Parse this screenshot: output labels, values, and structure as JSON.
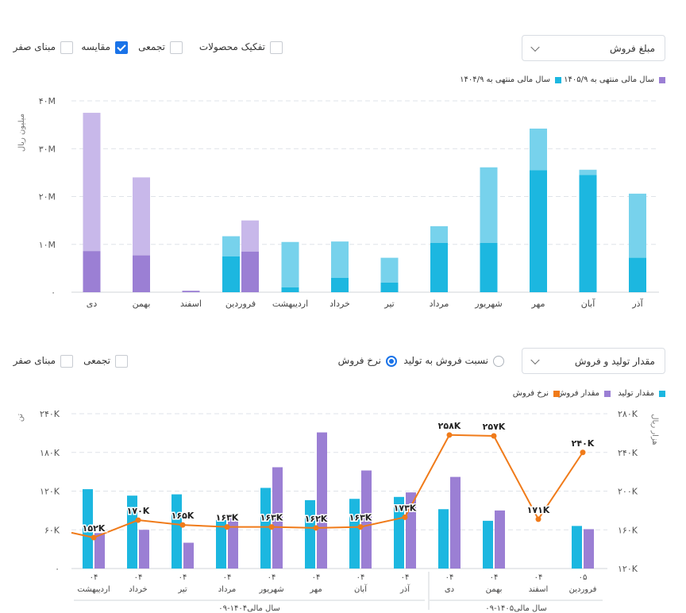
{
  "top": {
    "dropdown_label": "مبلغ فروش",
    "options": [
      {
        "label": "تفکیک محصولات",
        "checked": false
      },
      {
        "label": "تجمعی",
        "checked": false
      },
      {
        "label": "مقایسه",
        "checked": true
      },
      {
        "label": "مبنای صفر",
        "checked": false
      }
    ],
    "legend": [
      {
        "label": "سال مالی منتهی به ۱۴۰۵/۹",
        "color": "#9b7fd4"
      },
      {
        "label": "سال مالی منتهی به ۱۴۰۴/۹",
        "color": "#1cb7e0"
      }
    ]
  },
  "bottom": {
    "dropdown_label": "مقدار تولید و فروش",
    "radios": [
      {
        "label": "نسبت فروش به تولید",
        "selected": false
      },
      {
        "label": "نرخ فروش",
        "selected": true
      }
    ],
    "options": [
      {
        "label": "تجمعی",
        "checked": false
      },
      {
        "label": "مبنای صفر",
        "checked": false
      }
    ],
    "legend": [
      {
        "label": "مقدار تولید",
        "color": "#1cb7e0"
      },
      {
        "label": "مقدار فروش",
        "color": "#9b7fd4"
      },
      {
        "label": "نرخ فروش",
        "color": "#f07b1a"
      }
    ]
  },
  "chart_data": [
    {
      "type": "bar",
      "stacked": true,
      "ylabel": "میلیون ریال",
      "yticks": [
        "۰",
        "۱۰M",
        "۲۰M",
        "۳۰M",
        "۴۰M"
      ],
      "ylim": [
        0,
        40
      ],
      "categories": [
        "آذر",
        "آبان",
        "مهر",
        "شهریور",
        "مرداد",
        "تیر",
        "خرداد",
        "اردیبهشت",
        "فروردین",
        "اسفند",
        "بهمن",
        "دی"
      ],
      "series": [
        {
          "name": "سال مالی منتهی به ۱۴۰۴/۹",
          "colors": [
            "#1cb7e0",
            "#77d2ec"
          ],
          "base": [
            7.2,
            24.5,
            25.5,
            10.3,
            10.3,
            2.0,
            3.0,
            1.0,
            7.5,
            null,
            null,
            null
          ],
          "total": [
            20.6,
            25.6,
            34.2,
            26.1,
            13.8,
            7.2,
            10.6,
            10.5,
            11.7,
            null,
            null,
            null
          ]
        },
        {
          "name": "سال مالی منتهی به ۱۴۰۵/۹",
          "colors": [
            "#9b7fd4",
            "#c8b8ea"
          ],
          "base": [
            null,
            null,
            null,
            null,
            null,
            null,
            null,
            null,
            8.5,
            0.3,
            7.7,
            8.6
          ],
          "total": [
            null,
            null,
            null,
            null,
            null,
            null,
            null,
            null,
            15.0,
            0.3,
            24.0,
            37.5
          ]
        }
      ]
    },
    {
      "type": "bar+line",
      "y_left_label": "تن",
      "y_right_label": "هزار ریال",
      "y_left_ticks": [
        "۰",
        "۶۰K",
        "۱۲۰K",
        "۱۸۰K",
        "۲۴۰K"
      ],
      "y_left_lim": [
        0,
        240000
      ],
      "y_right_ticks": [
        "۱۲۰K",
        "۱۶۰K",
        "۲۰۰K",
        "۲۴۰K",
        "۲۸۰K"
      ],
      "y_right_lim": [
        120000,
        280000
      ],
      "categories": [
        {
          "month": "اردیبهشت",
          "year": "۰۴"
        },
        {
          "month": "خرداد",
          "year": "۰۴"
        },
        {
          "month": "تیر",
          "year": "۰۴"
        },
        {
          "month": "مرداد",
          "year": "۰۴"
        },
        {
          "month": "شهریور",
          "year": "۰۴"
        },
        {
          "month": "مهر",
          "year": "۰۴"
        },
        {
          "month": "آبان",
          "year": "۰۴"
        },
        {
          "month": "آذر",
          "year": "۰۴"
        },
        {
          "month": "دی",
          "year": "۰۴"
        },
        {
          "month": "بهمن",
          "year": "۰۴"
        },
        {
          "month": "اسفند",
          "year": "۰۴"
        },
        {
          "month": "فروردین",
          "year": "۰۵"
        }
      ],
      "groups": [
        {
          "label": "سال مالی۱۴۰۴-۰۹",
          "from": 0,
          "to": 7
        },
        {
          "label": "سال مالی۱۴۰۵-۰۹",
          "from": 8,
          "to": 11
        }
      ],
      "series": [
        {
          "name": "مقدار تولید",
          "color": "#1cb7e0",
          "values": [
            123000,
            113000,
            115000,
            75000,
            125000,
            106000,
            108000,
            111000,
            92000,
            74000,
            null,
            66000
          ]
        },
        {
          "name": "مقدار فروش",
          "color": "#9b7fd4",
          "values": [
            55000,
            60000,
            40000,
            78000,
            157000,
            211000,
            152000,
            118000,
            142000,
            90000,
            null,
            61000
          ]
        },
        {
          "name": "نرخ فروش",
          "color": "#f07b1a",
          "values": [
            152000,
            170000,
            165000,
            163000,
            163000,
            162000,
            163000,
            173000,
            258000,
            257000,
            171000,
            240000
          ],
          "labels": [
            "۱۵۲K",
            "۱۷۰K",
            "۱۶۵K",
            "۱۶۳K",
            "۱۶۳K",
            "۱۶۲K",
            "۱۶۳K",
            "۱۷۳K",
            "۲۵۸K",
            "۲۵۷K",
            "۱۷۱K",
            "۲۴۰K"
          ]
        }
      ]
    }
  ]
}
